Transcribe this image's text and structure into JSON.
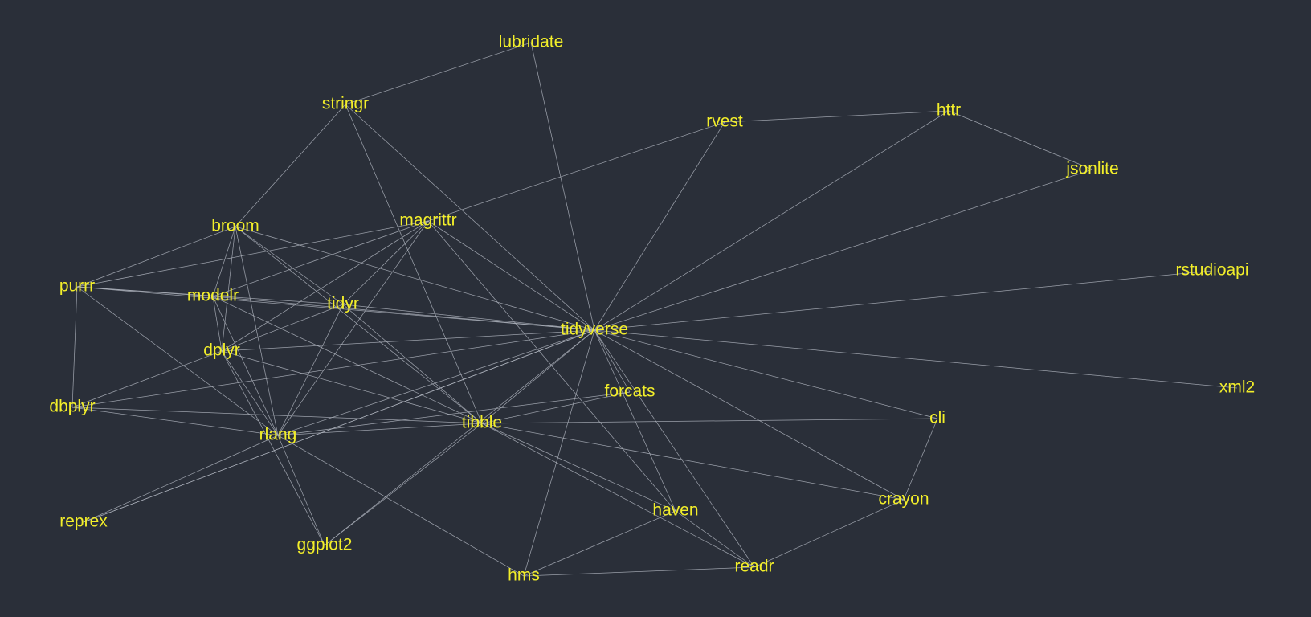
{
  "graph": {
    "background": "#2a2f39",
    "label_color": "#f2ee2a",
    "edge_color": "#aeb3bd",
    "nodes": [
      {
        "id": "lubridate",
        "label": "lubridate"
      },
      {
        "id": "stringr",
        "label": "stringr"
      },
      {
        "id": "rvest",
        "label": "rvest"
      },
      {
        "id": "httr",
        "label": "httr"
      },
      {
        "id": "jsonlite",
        "label": "jsonlite"
      },
      {
        "id": "broom",
        "label": "broom"
      },
      {
        "id": "magrittr",
        "label": "magrittr"
      },
      {
        "id": "rstudioapi",
        "label": "rstudioapi"
      },
      {
        "id": "purrr",
        "label": "purrr"
      },
      {
        "id": "modelr",
        "label": "modelr"
      },
      {
        "id": "tidyr",
        "label": "tidyr"
      },
      {
        "id": "tidyverse",
        "label": "tidyverse"
      },
      {
        "id": "dplyr",
        "label": "dplyr"
      },
      {
        "id": "xml2",
        "label": "xml2"
      },
      {
        "id": "forcats",
        "label": "forcats"
      },
      {
        "id": "dbplyr",
        "label": "dbplyr"
      },
      {
        "id": "cli",
        "label": "cli"
      },
      {
        "id": "tibble",
        "label": "tibble"
      },
      {
        "id": "rlang",
        "label": "rlang"
      },
      {
        "id": "crayon",
        "label": "crayon"
      },
      {
        "id": "reprex",
        "label": "reprex"
      },
      {
        "id": "haven",
        "label": "haven"
      },
      {
        "id": "ggplot2",
        "label": "ggplot2"
      },
      {
        "id": "readr",
        "label": "readr"
      },
      {
        "id": "hms",
        "label": "hms"
      }
    ],
    "edges": [
      [
        "lubridate",
        "stringr"
      ],
      [
        "lubridate",
        "tidyverse"
      ],
      [
        "stringr",
        "broom"
      ],
      [
        "stringr",
        "tidyverse"
      ],
      [
        "stringr",
        "tibble"
      ],
      [
        "rvest",
        "httr"
      ],
      [
        "rvest",
        "magrittr"
      ],
      [
        "rvest",
        "tidyverse"
      ],
      [
        "httr",
        "jsonlite"
      ],
      [
        "httr",
        "tidyverse"
      ],
      [
        "jsonlite",
        "tidyverse"
      ],
      [
        "rstudioapi",
        "tidyverse"
      ],
      [
        "xml2",
        "tidyverse"
      ],
      [
        "broom",
        "purrr"
      ],
      [
        "broom",
        "modelr"
      ],
      [
        "broom",
        "dplyr"
      ],
      [
        "broom",
        "tidyr"
      ],
      [
        "broom",
        "tibble"
      ],
      [
        "broom",
        "tidyverse"
      ],
      [
        "broom",
        "rlang"
      ],
      [
        "magrittr",
        "purrr"
      ],
      [
        "magrittr",
        "modelr"
      ],
      [
        "magrittr",
        "dplyr"
      ],
      [
        "magrittr",
        "tidyr"
      ],
      [
        "magrittr",
        "tidyverse"
      ],
      [
        "magrittr",
        "rlang"
      ],
      [
        "magrittr",
        "haven"
      ],
      [
        "purrr",
        "tidyverse"
      ],
      [
        "purrr",
        "tidyr"
      ],
      [
        "purrr",
        "modelr"
      ],
      [
        "purrr",
        "dbplyr"
      ],
      [
        "purrr",
        "rlang"
      ],
      [
        "modelr",
        "tidyverse"
      ],
      [
        "modelr",
        "dplyr"
      ],
      [
        "modelr",
        "tibble"
      ],
      [
        "modelr",
        "rlang"
      ],
      [
        "tidyr",
        "tidyverse"
      ],
      [
        "tidyr",
        "dplyr"
      ],
      [
        "tidyr",
        "tibble"
      ],
      [
        "tidyr",
        "rlang"
      ],
      [
        "dplyr",
        "tidyverse"
      ],
      [
        "dplyr",
        "tibble"
      ],
      [
        "dplyr",
        "rlang"
      ],
      [
        "dplyr",
        "dbplyr"
      ],
      [
        "dplyr",
        "ggplot2"
      ],
      [
        "dbplyr",
        "tidyverse"
      ],
      [
        "dbplyr",
        "tibble"
      ],
      [
        "dbplyr",
        "rlang"
      ],
      [
        "tidyverse",
        "forcats"
      ],
      [
        "tidyverse",
        "tibble"
      ],
      [
        "tidyverse",
        "rlang"
      ],
      [
        "tidyverse",
        "cli"
      ],
      [
        "tidyverse",
        "crayon"
      ],
      [
        "tidyverse",
        "haven"
      ],
      [
        "tidyverse",
        "readr"
      ],
      [
        "tidyverse",
        "hms"
      ],
      [
        "tidyverse",
        "reprex"
      ],
      [
        "tidyverse",
        "ggplot2"
      ],
      [
        "forcats",
        "tibble"
      ],
      [
        "forcats",
        "rlang"
      ],
      [
        "tibble",
        "rlang"
      ],
      [
        "tibble",
        "cli"
      ],
      [
        "tibble",
        "crayon"
      ],
      [
        "tibble",
        "haven"
      ],
      [
        "tibble",
        "readr"
      ],
      [
        "tibble",
        "ggplot2"
      ],
      [
        "rlang",
        "reprex"
      ],
      [
        "rlang",
        "hms"
      ],
      [
        "rlang",
        "ggplot2"
      ],
      [
        "cli",
        "crayon"
      ],
      [
        "crayon",
        "readr"
      ],
      [
        "haven",
        "hms"
      ],
      [
        "haven",
        "readr"
      ],
      [
        "hms",
        "readr"
      ],
      [
        "reprex",
        "tidyverse"
      ]
    ]
  }
}
